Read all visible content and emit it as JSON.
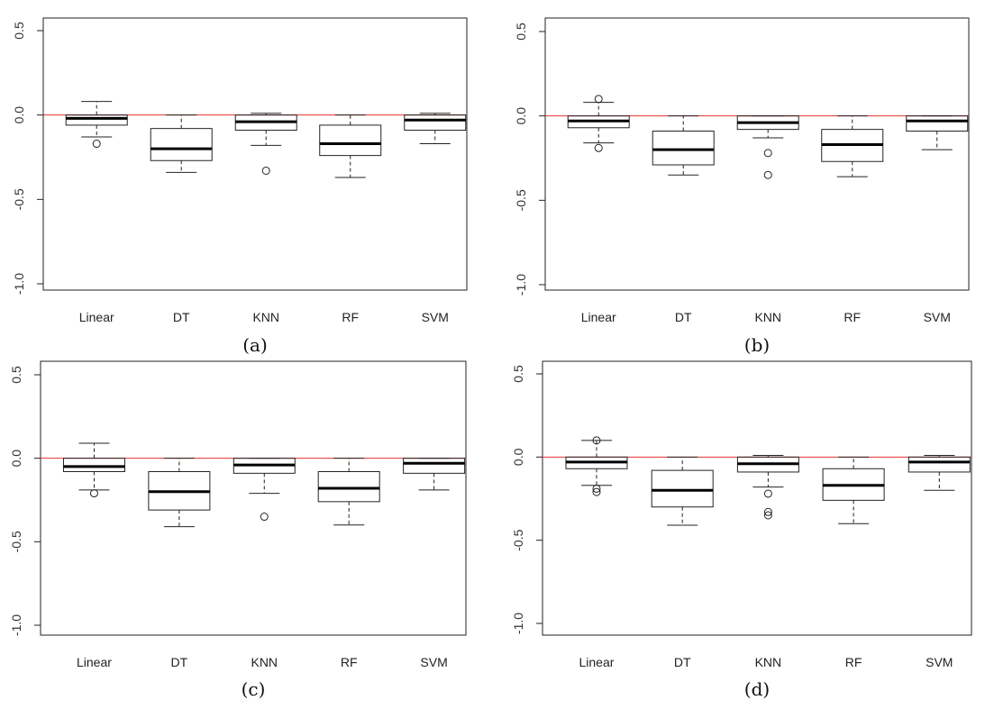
{
  "chart_data": [
    {
      "type": "boxplot",
      "panel_label": "(a)",
      "categories": [
        "Linear",
        "DT",
        "KNN",
        "RF",
        "SVM"
      ],
      "ylim": [
        -1.0,
        0.5
      ],
      "yticks": [
        0.5,
        0.0,
        -0.5,
        -1.0
      ],
      "ytick_labels": [
        "0.5",
        "0.0",
        "-0.5",
        "-1.0"
      ],
      "reference_line": {
        "y": 0.0,
        "color": "#e8322b"
      },
      "boxes": [
        {
          "category": "Linear",
          "whisker_low": -0.13,
          "q1": -0.06,
          "median": -0.02,
          "q3": 0.0,
          "whisker_high": 0.08,
          "outliers": [
            -0.17
          ]
        },
        {
          "category": "DT",
          "whisker_low": -0.34,
          "q1": -0.27,
          "median": -0.2,
          "q3": -0.08,
          "whisker_high": 0.0,
          "outliers": []
        },
        {
          "category": "KNN",
          "whisker_low": -0.18,
          "q1": -0.09,
          "median": -0.04,
          "q3": 0.0,
          "whisker_high": 0.01,
          "outliers": [
            -0.33
          ]
        },
        {
          "category": "RF",
          "whisker_low": -0.37,
          "q1": -0.24,
          "median": -0.17,
          "q3": -0.06,
          "whisker_high": 0.0,
          "outliers": []
        },
        {
          "category": "SVM",
          "whisker_low": -0.17,
          "q1": -0.09,
          "median": -0.03,
          "q3": 0.0,
          "whisker_high": 0.01,
          "outliers": []
        }
      ]
    },
    {
      "type": "boxplot",
      "panel_label": "(b)",
      "categories": [
        "Linear",
        "DT",
        "KNN",
        "RF",
        "SVM"
      ],
      "ylim": [
        -1.0,
        0.5
      ],
      "yticks": [
        0.5,
        0.0,
        -0.5,
        -1.0
      ],
      "ytick_labels": [
        "0.5",
        "0.0",
        "-0.5",
        "-1.0"
      ],
      "reference_line": {
        "y": 0.0,
        "color": "#e8322b"
      },
      "boxes": [
        {
          "category": "Linear",
          "whisker_low": -0.16,
          "q1": -0.07,
          "median": -0.03,
          "q3": 0.0,
          "whisker_high": 0.08,
          "outliers": [
            0.1,
            -0.19
          ]
        },
        {
          "category": "DT",
          "whisker_low": -0.35,
          "q1": -0.29,
          "median": -0.2,
          "q3": -0.09,
          "whisker_high": 0.0,
          "outliers": []
        },
        {
          "category": "KNN",
          "whisker_low": -0.13,
          "q1": -0.08,
          "median": -0.04,
          "q3": 0.0,
          "whisker_high": 0.0,
          "outliers": [
            -0.22,
            -0.35
          ]
        },
        {
          "category": "RF",
          "whisker_low": -0.36,
          "q1": -0.27,
          "median": -0.17,
          "q3": -0.08,
          "whisker_high": 0.0,
          "outliers": []
        },
        {
          "category": "SVM",
          "whisker_low": -0.2,
          "q1": -0.09,
          "median": -0.03,
          "q3": 0.0,
          "whisker_high": 0.0,
          "outliers": []
        }
      ]
    },
    {
      "type": "boxplot",
      "panel_label": "(c)",
      "categories": [
        "Linear",
        "DT",
        "KNN",
        "RF",
        "SVM"
      ],
      "ylim": [
        -1.0,
        0.5
      ],
      "yticks": [
        0.5,
        0.0,
        -0.5,
        -1.0
      ],
      "ytick_labels": [
        "0.5",
        "0.0",
        "-0.5",
        "-1.0"
      ],
      "reference_line": {
        "y": 0.0,
        "color": "#e8322b"
      },
      "boxes": [
        {
          "category": "Linear",
          "whisker_low": -0.19,
          "q1": -0.08,
          "median": -0.05,
          "q3": 0.0,
          "whisker_high": 0.09,
          "outliers": [
            -0.21
          ]
        },
        {
          "category": "DT",
          "whisker_low": -0.41,
          "q1": -0.31,
          "median": -0.2,
          "q3": -0.08,
          "whisker_high": 0.0,
          "outliers": []
        },
        {
          "category": "KNN",
          "whisker_low": -0.21,
          "q1": -0.09,
          "median": -0.04,
          "q3": 0.0,
          "whisker_high": 0.0,
          "outliers": [
            -0.35
          ]
        },
        {
          "category": "RF",
          "whisker_low": -0.4,
          "q1": -0.26,
          "median": -0.18,
          "q3": -0.08,
          "whisker_high": 0.0,
          "outliers": []
        },
        {
          "category": "SVM",
          "whisker_low": -0.19,
          "q1": -0.09,
          "median": -0.03,
          "q3": 0.0,
          "whisker_high": 0.0,
          "outliers": []
        }
      ]
    },
    {
      "type": "boxplot",
      "panel_label": "(d)",
      "categories": [
        "Linear",
        "DT",
        "KNN",
        "RF",
        "SVM"
      ],
      "ylim": [
        -1.0,
        0.5
      ],
      "yticks": [
        0.5,
        0.0,
        -0.5,
        -1.0
      ],
      "ytick_labels": [
        "0.5",
        "0.0",
        "-0.5",
        "-1.0"
      ],
      "reference_line": {
        "y": 0.0,
        "color": "#e8322b"
      },
      "boxes": [
        {
          "category": "Linear",
          "whisker_low": -0.17,
          "q1": -0.07,
          "median": -0.03,
          "q3": 0.0,
          "whisker_high": 0.1,
          "outliers": [
            0.1,
            -0.19,
            -0.21
          ]
        },
        {
          "category": "DT",
          "whisker_low": -0.41,
          "q1": -0.3,
          "median": -0.2,
          "q3": -0.08,
          "whisker_high": 0.0,
          "outliers": []
        },
        {
          "category": "KNN",
          "whisker_low": -0.18,
          "q1": -0.09,
          "median": -0.04,
          "q3": 0.0,
          "whisker_high": 0.01,
          "outliers": [
            -0.22,
            -0.33,
            -0.35
          ]
        },
        {
          "category": "RF",
          "whisker_low": -0.4,
          "q1": -0.26,
          "median": -0.17,
          "q3": -0.07,
          "whisker_high": 0.0,
          "outliers": []
        },
        {
          "category": "SVM",
          "whisker_low": -0.2,
          "q1": -0.09,
          "median": -0.03,
          "q3": 0.0,
          "whisker_high": 0.01,
          "outliers": []
        }
      ]
    }
  ]
}
